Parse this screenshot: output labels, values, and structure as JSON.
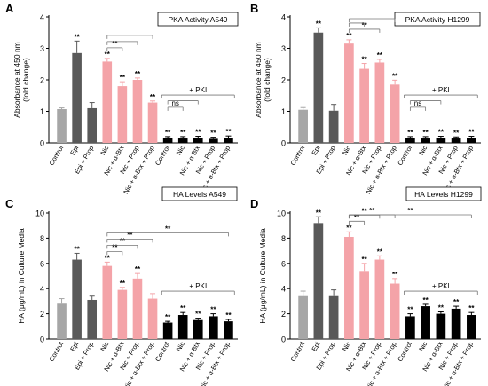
{
  "chart_data": [
    {
      "panel_label": "A",
      "type": "bar",
      "title": "PKA Activity A549",
      "ylabel": "Absorbance at 450 nm\n(fold change)",
      "ylim": [
        0,
        4
      ],
      "yticks": [
        "0",
        "1",
        "2",
        "3",
        "4"
      ],
      "categories": [
        "Control",
        "Epi",
        "Epi + Prop",
        "Nic",
        "Nic + α-Btx",
        "Nic + Prop",
        "Nic + α-Btx + Prop",
        "Control",
        "Nic",
        "Nic + α-Btx",
        "Nic + Prop",
        "Nic + α-Btx + Prop"
      ],
      "values": [
        1.07,
        2.85,
        1.1,
        2.58,
        1.8,
        2.0,
        1.28,
        0.15,
        0.14,
        0.15,
        0.13,
        0.15
      ],
      "errors": [
        0.04,
        0.38,
        0.18,
        0.1,
        0.14,
        0.06,
        0.05,
        0.05,
        0.06,
        0.06,
        0.05,
        0.07
      ],
      "bar_colors": [
        "#a6a6a6",
        "#595959",
        "#595959",
        "#f4a3a8",
        "#f4a3a8",
        "#f4a3a8",
        "#f4a3a8",
        "#000000",
        "#000000",
        "#000000",
        "#000000",
        "#000000"
      ],
      "significance": [
        "",
        "**",
        "",
        "**",
        "**",
        "**",
        "**",
        "**",
        "**",
        "**",
        "**",
        "**"
      ],
      "brackets": [
        {
          "label": "**",
          "from": 3,
          "to": [
            4
          ]
        },
        {
          "label": "",
          "from": 3,
          "to": [
            5
          ]
        },
        {
          "label": "",
          "from": 3,
          "to": [
            6
          ]
        },
        {
          "label": "ns",
          "from": 7,
          "to": [
            8
          ]
        },
        {
          "label": "",
          "from": 7,
          "to": [
            9
          ]
        }
      ],
      "group_annotation": {
        "label": "+ PKI",
        "from": 7,
        "to": 11
      }
    },
    {
      "panel_label": "B",
      "type": "bar",
      "title": "PKA Activity H1299",
      "ylabel": "Absorbance at 450 nm\n(fold change)",
      "ylim": [
        0,
        4
      ],
      "yticks": [
        "0",
        "1",
        "2",
        "3",
        "4"
      ],
      "categories": [
        "Control",
        "Epi",
        "Epi + Prop",
        "Nic",
        "Nic + α-Btx",
        "Nic + Prop",
        "Nic + α-Btx + Prop",
        "Control",
        "Nic",
        "Nic + α-Btx",
        "Nic + Prop",
        "Nic + α-Btx + Prop"
      ],
      "values": [
        1.05,
        3.5,
        1.02,
        3.15,
        2.35,
        2.55,
        1.85,
        0.15,
        0.14,
        0.15,
        0.14,
        0.15
      ],
      "errors": [
        0.07,
        0.15,
        0.2,
        0.12,
        0.17,
        0.1,
        0.14,
        0.05,
        0.06,
        0.06,
        0.05,
        0.06
      ],
      "bar_colors": [
        "#a6a6a6",
        "#595959",
        "#595959",
        "#f4a3a8",
        "#f4a3a8",
        "#f4a3a8",
        "#f4a3a8",
        "#000000",
        "#000000",
        "#000000",
        "#000000",
        "#000000"
      ],
      "significance": [
        "",
        "**",
        "",
        "**",
        "**",
        "**",
        "**",
        "**",
        "**",
        "**",
        "**",
        "**"
      ],
      "brackets": [
        {
          "label": "**",
          "from": 3,
          "to": [
            5
          ]
        },
        {
          "label": "",
          "from": 3,
          "to": [
            4
          ]
        },
        {
          "label": "",
          "from": 3,
          "to": [
            6
          ]
        },
        {
          "label": "ns",
          "from": 7,
          "to": [
            8
          ]
        },
        {
          "label": "",
          "from": 7,
          "to": [
            9
          ]
        }
      ],
      "group_annotation": {
        "label": "+ PKI",
        "from": 7,
        "to": 11
      }
    },
    {
      "panel_label": "C",
      "type": "bar",
      "title": "HA Levels A549",
      "ylabel": "HA (μg/mL) in Culture Media",
      "ylim": [
        0,
        10
      ],
      "yticks": [
        "0",
        "2",
        "4",
        "6",
        "8",
        "10"
      ],
      "categories": [
        "Control",
        "Epi",
        "Epi + Prop",
        "Nic",
        "Nic + α-Btx",
        "Nic + Prop",
        "Nic + α-Btx + Prop",
        "Control",
        "Nic",
        "Nic + α-Btx",
        "Nic + Prop",
        "Nic + α-Btx + Prop"
      ],
      "values": [
        2.8,
        6.3,
        3.1,
        5.8,
        3.9,
        4.8,
        3.2,
        1.3,
        1.9,
        1.5,
        1.8,
        1.4
      ],
      "errors": [
        0.4,
        0.5,
        0.3,
        0.3,
        0.2,
        0.4,
        0.4,
        0.1,
        0.2,
        0.15,
        0.2,
        0.15
      ],
      "bar_colors": [
        "#a6a6a6",
        "#595959",
        "#595959",
        "#f4a3a8",
        "#f4a3a8",
        "#f4a3a8",
        "#f4a3a8",
        "#000000",
        "#000000",
        "#000000",
        "#000000",
        "#000000"
      ],
      "significance": [
        "",
        "**",
        "",
        "**",
        "**",
        "**",
        "",
        "**",
        "**",
        "**",
        "**",
        "**"
      ],
      "brackets": [
        {
          "label": "**",
          "from": 3,
          "to": [
            4
          ]
        },
        {
          "label": "**",
          "from": 3,
          "to": [
            5
          ]
        },
        {
          "label": "**",
          "from": 3,
          "to": [
            6
          ]
        },
        {
          "label": "**",
          "from": 3,
          "to": [
            11
          ]
        }
      ],
      "group_annotation": {
        "label": "+ PKI",
        "from": 7,
        "to": 11
      }
    },
    {
      "panel_label": "D",
      "type": "bar",
      "title": "HA Levels H1299",
      "ylabel": "HA (μg/mL) in Culture Media",
      "ylim": [
        0,
        10
      ],
      "yticks": [
        "0",
        "2",
        "4",
        "6",
        "8",
        "10"
      ],
      "categories": [
        "Control",
        "Epi",
        "Epi + Prop",
        "Nic",
        "Nic + α-Btx",
        "Nic + Prop",
        "Nic + α-Btx + Prop",
        "Control",
        "Nic",
        "Nic + α-Btx",
        "Nic + Prop",
        "Nic + α-Btx + Prop"
      ],
      "values": [
        3.4,
        9.2,
        3.4,
        8.1,
        5.4,
        6.3,
        4.4,
        1.8,
        2.6,
        2.0,
        2.4,
        1.9
      ],
      "errors": [
        0.4,
        0.5,
        0.5,
        0.4,
        0.6,
        0.3,
        0.4,
        0.2,
        0.15,
        0.15,
        0.2,
        0.2
      ],
      "bar_colors": [
        "#a6a6a6",
        "#595959",
        "#595959",
        "#f4a3a8",
        "#f4a3a8",
        "#f4a3a8",
        "#f4a3a8",
        "#000000",
        "#000000",
        "#000000",
        "#000000",
        "#000000"
      ],
      "significance": [
        "",
        "**",
        "",
        "**",
        "**",
        "**",
        "**",
        "**",
        "**",
        "**",
        "**",
        "**"
      ],
      "brackets": [
        {
          "label": "**",
          "from": 3,
          "to": [
            4
          ]
        },
        {
          "label": "**",
          "from": 3,
          "to": [
            5
          ]
        },
        {
          "label": "**",
          "from": 3,
          "to": [
            6
          ]
        },
        {
          "label": "**",
          "from": 3,
          "to": [
            11
          ]
        }
      ],
      "group_annotation": {
        "label": "+ PKI",
        "from": 7,
        "to": 11
      }
    }
  ]
}
